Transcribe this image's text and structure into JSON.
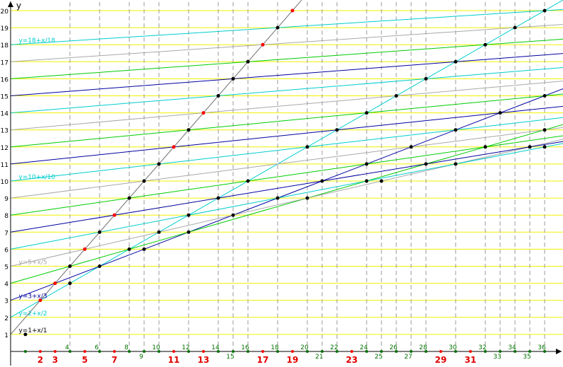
{
  "chart_data": {
    "type": "line",
    "ylabel": "y",
    "xlim": [
      0,
      37
    ],
    "ylim": [
      0,
      20.5
    ],
    "grid": {
      "horizontal_lines": "yellow at every integer y",
      "vertical_lines": "dashed gray at each composite x from 4 to 36"
    },
    "colors": {
      "yellow_grid": "#f0f000",
      "dashed_grid": "#999999",
      "axis": "#000000",
      "prime_labels": "#e00000",
      "composite_labels": "#007000",
      "prime_points": "#ff0000",
      "composite_points": "#000000",
      "slope1": "#808080"
    },
    "y_ticks": [
      "1",
      "2",
      "3",
      "4",
      "5",
      "6",
      "7",
      "8",
      "9",
      "10",
      "11",
      "12",
      "13",
      "14",
      "15",
      "16",
      "17",
      "18",
      "19",
      "20"
    ],
    "x_prime_labels": [
      "2",
      "3",
      "5",
      "7",
      "11",
      "13",
      "17",
      "19",
      "23",
      "29",
      "31"
    ],
    "x_composite_labels": [
      "4",
      "6",
      "8",
      "9",
      "10",
      "12",
      "14",
      "15",
      "16",
      "18",
      "20",
      "21",
      "22",
      "24",
      "25",
      "26",
      "27",
      "28",
      "30",
      "32",
      "33",
      "34",
      "35",
      "36"
    ],
    "x_ticks_shown": [
      "4",
      "6",
      "8",
      "9",
      "10",
      "12",
      "14",
      "15",
      "16",
      "18",
      "20",
      "21",
      "22",
      "24",
      "25",
      "26",
      "27",
      "28",
      "30",
      "32",
      "33",
      "34",
      "35",
      "36"
    ],
    "series": [
      {
        "k": 1,
        "color": "#808080"
      },
      {
        "k": 2,
        "color": "#00cccc"
      },
      {
        "k": 3,
        "color": "#0000a0"
      },
      {
        "k": 4,
        "color": "#00cc00"
      },
      {
        "k": 5,
        "color": "#a8a8a8"
      },
      {
        "k": 6,
        "color": "#00cccc"
      },
      {
        "k": 7,
        "color": "#0000a0"
      },
      {
        "k": 8,
        "color": "#00cc00"
      },
      {
        "k": 9,
        "color": "#a8a8a8"
      },
      {
        "k": 10,
        "color": "#00cccc"
      },
      {
        "k": 11,
        "color": "#0000a0"
      },
      {
        "k": 12,
        "color": "#00cc00"
      },
      {
        "k": 13,
        "color": "#a8a8a8"
      },
      {
        "k": 14,
        "color": "#00cccc"
      },
      {
        "k": 15,
        "color": "#0000a0"
      },
      {
        "k": 16,
        "color": "#00cc00"
      },
      {
        "k": 17,
        "color": "#a8a8a8"
      },
      {
        "k": 18,
        "color": "#00cccc"
      }
    ],
    "annotations": [
      {
        "text": "y=1+x/1",
        "k": 1,
        "color": "#000000"
      },
      {
        "text": "y=2+x/2",
        "k": 2,
        "color": "#00cccc"
      },
      {
        "text": "y=3+x/3",
        "k": 3,
        "color": "#0000a0"
      },
      {
        "text": "y=5+x/5",
        "k": 5,
        "color": "#a8a8a8"
      },
      {
        "text": "y=10+x/10",
        "k": 10,
        "color": "#00cccc"
      },
      {
        "text": "y=18+x/18",
        "k": 18,
        "color": "#00cccc"
      }
    ],
    "points_primes_on_y_eq_x_plus_1": [
      [
        2,
        3
      ],
      [
        3,
        4
      ],
      [
        5,
        6
      ],
      [
        7,
        8
      ],
      [
        11,
        12
      ],
      [
        13,
        14
      ],
      [
        17,
        18
      ],
      [
        19,
        20
      ]
    ],
    "points_composites": [
      [
        4,
        5
      ],
      [
        6,
        7
      ],
      [
        8,
        9
      ],
      [
        9,
        10
      ],
      [
        10,
        11
      ],
      [
        12,
        13
      ],
      [
        14,
        15
      ],
      [
        15,
        16
      ],
      [
        16,
        17
      ],
      [
        18,
        19
      ],
      [
        4,
        4
      ],
      [
        6,
        5
      ],
      [
        8,
        6
      ],
      [
        9,
        6
      ],
      [
        10,
        7
      ],
      [
        12,
        7
      ],
      [
        12,
        8
      ],
      [
        14,
        9
      ],
      [
        15,
        8
      ],
      [
        16,
        10
      ],
      [
        18,
        9
      ],
      [
        20,
        9
      ],
      [
        20,
        12
      ],
      [
        21,
        10
      ],
      [
        22,
        13
      ],
      [
        24,
        10
      ],
      [
        24,
        11
      ],
      [
        24,
        14
      ],
      [
        25,
        10
      ],
      [
        26,
        15
      ],
      [
        27,
        12
      ],
      [
        28,
        11
      ],
      [
        28,
        16
      ],
      [
        30,
        11
      ],
      [
        30,
        13
      ],
      [
        30,
        17
      ],
      [
        32,
        12
      ],
      [
        32,
        18
      ],
      [
        33,
        14
      ],
      [
        34,
        19
      ],
      [
        35,
        12
      ],
      [
        36,
        12
      ],
      [
        36,
        13
      ],
      [
        36,
        15
      ],
      [
        36,
        20
      ]
    ],
    "other_highlight_points": [
      [
        1,
        1
      ]
    ]
  }
}
